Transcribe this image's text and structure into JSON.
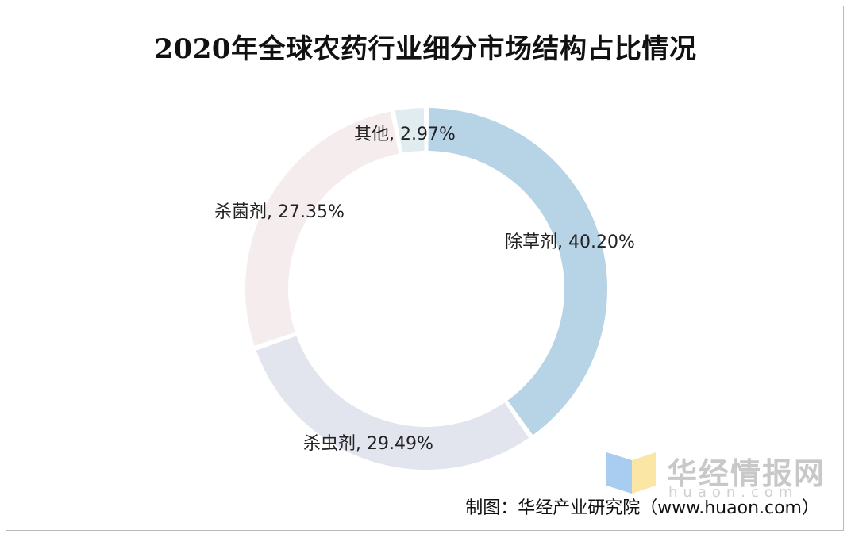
{
  "title": "2020年全球农药行业细分市场结构占比情况",
  "chart_data": {
    "type": "pie",
    "donut": true,
    "title": "2020年全球农药行业细分市场结构占比情况",
    "slices": [
      {
        "name": "除草剂",
        "value": 40.2,
        "label": "除草剂, 40.20%",
        "color": "#b7d3e6"
      },
      {
        "name": "杀虫剂",
        "value": 29.49,
        "label": "杀虫剂, 29.49%",
        "color": "#e3e5ee"
      },
      {
        "name": "杀菌剂",
        "value": 27.35,
        "label": "杀菌剂, 27.35%",
        "color": "#f4eced"
      },
      {
        "name": "其他",
        "value": 2.97,
        "label": "其他, 2.97%",
        "color": "#e1ecf1"
      }
    ]
  },
  "watermark": {
    "brand": "华经情报网",
    "url": "huaon.com"
  },
  "source": "制图：华经产业研究院（www.huaon.com）"
}
